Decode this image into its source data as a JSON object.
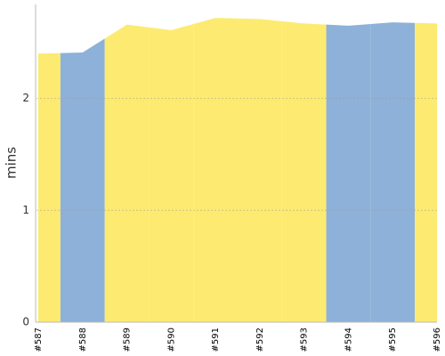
{
  "chart_data": {
    "type": "area",
    "y_label": "mins",
    "categories": [
      "#587",
      "#588",
      "#589",
      "#590",
      "#591",
      "#592",
      "#593",
      "#594",
      "#595",
      "#596"
    ],
    "series": [
      {
        "values": [
          2.4,
          2.41,
          2.66,
          2.61,
          2.72,
          2.71,
          2.67,
          2.65,
          2.68,
          2.67
        ],
        "colors": [
          "#fdeb71",
          "#8eb1d9",
          "#fdeb71",
          "#fdeb71",
          "#fdeb71",
          "#fdeb71",
          "#fdeb71",
          "#8eb1d9",
          "#8eb1d9",
          "#fdeb71"
        ]
      }
    ],
    "ylim": [
      0,
      2.84
    ],
    "yticks": [
      0,
      1,
      2
    ],
    "grid": true
  }
}
